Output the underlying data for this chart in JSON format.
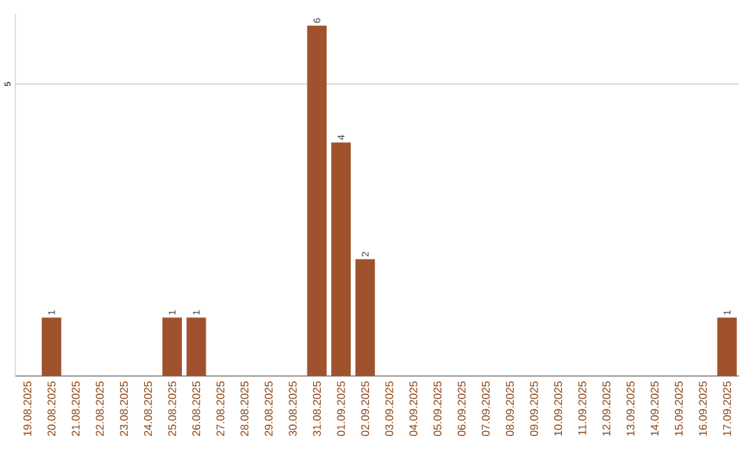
{
  "chart_data": {
    "type": "bar",
    "categories": [
      "19.08.2025",
      "20.08.2025",
      "21.08.2025",
      "22.08.2025",
      "23.08.2025",
      "24.08.2025",
      "25.08.2025",
      "26.08.2025",
      "27.08.2025",
      "28.08.2025",
      "29.08.2025",
      "30.08.2025",
      "31.08.2025",
      "01.09.2025",
      "02.09.2025",
      "03.09.2025",
      "04.09.2025",
      "05.09.2025",
      "06.09.2025",
      "07.09.2025",
      "08.09.2025",
      "09.09.2025",
      "10.09.2025",
      "11.09.2025",
      "12.09.2025",
      "13.09.2025",
      "14.09.2025",
      "15.09.2025",
      "16.09.2025",
      "17.09.2025"
    ],
    "values": [
      0,
      1,
      0,
      0,
      0,
      0,
      1,
      1,
      0,
      0,
      0,
      0,
      6,
      4,
      2,
      0,
      0,
      0,
      0,
      0,
      0,
      0,
      0,
      0,
      0,
      0,
      0,
      0,
      0,
      1
    ],
    "value_labels": [
      null,
      "1",
      null,
      null,
      null,
      null,
      "1",
      "1",
      null,
      null,
      null,
      null,
      "6",
      "4",
      "2",
      null,
      null,
      null,
      null,
      null,
      null,
      null,
      null,
      null,
      null,
      null,
      null,
      null,
      null,
      "1"
    ],
    "color": "#a0522d",
    "ylim": [
      0,
      6.2
    ],
    "yticks": [
      5
    ],
    "grid": "y"
  }
}
